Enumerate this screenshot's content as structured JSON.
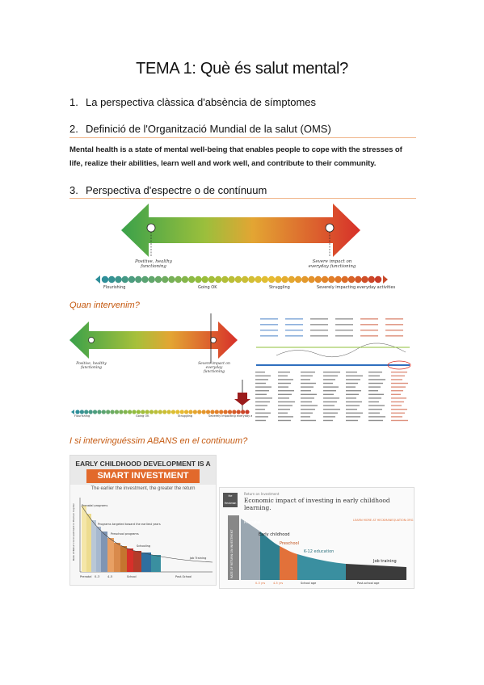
{
  "title": "TEMA 1: Què és salut mental?",
  "sections": [
    {
      "num": "1.",
      "label": "La perspectiva clàssica d'absència de símptomes"
    },
    {
      "num": "2.",
      "label": "Definició de l'Organització Mundial de la salut (OMS)"
    },
    {
      "num": "3.",
      "label": "Perspectiva d'espectre o de contínuum"
    }
  ],
  "who_definition": "Mental health is a state of mental well-being that enables people to cope with the stresses of life, realize their abilities, learn well and work well, and contribute to their community.",
  "spectrum": {
    "left_marker": "Positive, healthy functioning",
    "right_marker": "Severe impact on everyday functioning",
    "scale_labels": [
      "Flourishing",
      "Going OK",
      "Struggling",
      "Severely impacting everyday activities"
    ]
  },
  "when_intervene": "Quan intervenim?",
  "intervene_before": "I si intervinguéssim ABANS en el continuum?",
  "investment_chart": {
    "banner_line1": "EARLY CHILDHOOD DEVELOPMENT IS A",
    "banner_line2": "SMART INVESTMENT",
    "subtitle": "The earlier the investment, the greater the return",
    "labels": [
      "Prenatal programs",
      "Programs targeted toward the earliest years",
      "Preschool programs",
      "Schooling",
      "Job Training"
    ],
    "x_labels": [
      "Prenatal",
      "0–3",
      "4–5",
      "School",
      "Post-School"
    ],
    "y_label": "Rate of Return to Investment in Human Capital"
  },
  "heckman_chart": {
    "kicker": "Return on Investment",
    "logo": "the Heckman",
    "title": "Economic impact of investing in early childhood learning.",
    "badge": "LEARN MORE AT HECKMANEQUATION.ORG",
    "y_label": "RATE OF RETURN ON INVESTMENT",
    "stages": [
      "Prenatal",
      "Early childhood",
      "Preschool",
      "K-12 education",
      "Job training"
    ],
    "x_labels": [
      "0-3 yrs",
      "4-5 yrs",
      "School age",
      "Post-school age"
    ],
    "colors": {
      "prenatal": "#9aa7b1",
      "early": "#2f7f8f",
      "preschool": "#e2713a",
      "k12": "#3a8fa0",
      "job": "#3b3b3b"
    }
  }
}
